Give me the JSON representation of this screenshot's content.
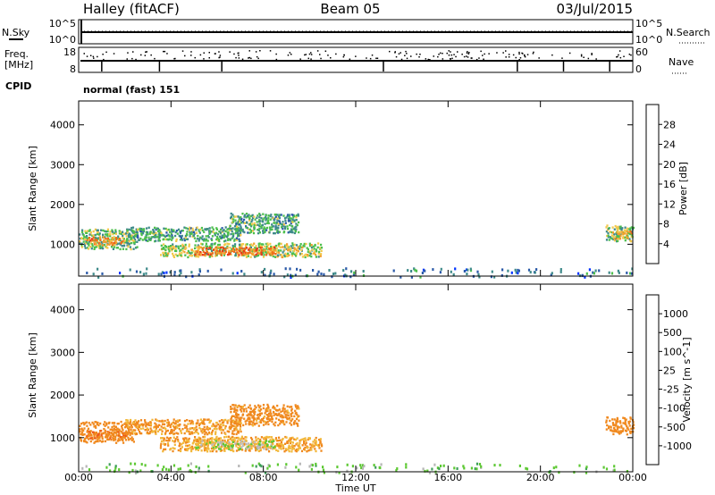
{
  "header": {
    "station": "Halley (fitACF)",
    "beam": "Beam 05",
    "date": "03/Jul/2015"
  },
  "noise_panel": {
    "left_label": "N.Sky",
    "left_ticks": [
      "10^5",
      "10^0"
    ],
    "right_label": "N.Search",
    "right_ticks": [
      "10^5",
      "10^0"
    ]
  },
  "freq_panel": {
    "left_label_line1": "Freq.",
    "left_label_line2": "[MHz]",
    "left_ticks": [
      "18",
      "8"
    ],
    "right_label": "Nave",
    "right_ticks": [
      "60",
      "0"
    ]
  },
  "cpid": {
    "label": "CPID",
    "value": "normal (fast) 151"
  },
  "x_axis": {
    "label": "Time UT",
    "ticks": [
      "00:00",
      "04:00",
      "08:00",
      "12:00",
      "16:00",
      "20:00",
      "00:00"
    ],
    "hours": [
      0,
      4,
      8,
      12,
      16,
      20,
      24
    ]
  },
  "colors": {
    "power_scale": [
      "#0033ff",
      "#2b5aa8",
      "#3f8a8a",
      "#4cbf4c",
      "#f2c94c",
      "#f29f2e",
      "#ef6a1a",
      "#e83a1a",
      "#d41212"
    ],
    "velocity_scale": [
      "#e81c1c",
      "#ee5a1a",
      "#f0891e",
      "#f2b83a",
      "#bdbdbd",
      "#b6b6b6",
      "#5cc832",
      "#3f9f5a",
      "#2a6ab0",
      "#1a3fd6"
    ]
  },
  "chart_data": [
    {
      "type": "heatmap",
      "panel": "power",
      "xlabel": "Time UT",
      "ylabel": "Slant Range [km]",
      "x_unit": "hours UT",
      "xlim": [
        0,
        24
      ],
      "ylim": [
        200,
        4600
      ],
      "yticks": [
        1000,
        2000,
        3000,
        4000
      ],
      "colorbar": {
        "label": "Power [dB]",
        "range": [
          0,
          32
        ],
        "ticks": [
          "4",
          "8",
          "12",
          "16",
          "20",
          "24",
          "28"
        ]
      },
      "regions": [
        {
          "t0": 0.0,
          "t1": 2.5,
          "r0": 900,
          "r1": 1400,
          "val": 14
        },
        {
          "t0": 0.3,
          "t1": 2.0,
          "r0": 1000,
          "r1": 1200,
          "val": 24
        },
        {
          "t0": 2.0,
          "t1": 7.0,
          "r0": 1100,
          "r1": 1450,
          "val": 12
        },
        {
          "t0": 3.5,
          "t1": 10.5,
          "r0": 700,
          "r1": 1050,
          "val": 16
        },
        {
          "t0": 5.0,
          "t1": 8.5,
          "r0": 750,
          "r1": 950,
          "val": 26
        },
        {
          "t0": 6.5,
          "t1": 9.5,
          "r0": 1300,
          "r1": 1800,
          "val": 12
        },
        {
          "t0": 22.8,
          "t1": 24.0,
          "r0": 1100,
          "r1": 1500,
          "val": 14
        },
        {
          "t0": 23.1,
          "t1": 24.0,
          "r0": 1150,
          "r1": 1350,
          "val": 20
        },
        {
          "t0": 0.0,
          "t1": 24.0,
          "r0": 200,
          "r1": 420,
          "val": 8
        }
      ]
    },
    {
      "type": "heatmap",
      "panel": "velocity",
      "xlabel": "Time UT",
      "ylabel": "Slant Range [km]",
      "x_unit": "hours UT",
      "xlim": [
        0,
        24
      ],
      "ylim": [
        200,
        4600
      ],
      "yticks": [
        1000,
        2000,
        3000,
        4000
      ],
      "colorbar": {
        "label": "Velocity [m s^-1]",
        "ticks": [
          "1000",
          "500",
          "100",
          "25",
          "-25",
          "-100",
          "-500",
          "-1000"
        ]
      },
      "regions": [
        {
          "t0": 0.0,
          "t1": 2.5,
          "r0": 900,
          "r1": 1400,
          "val": -180
        },
        {
          "t0": 0.3,
          "t1": 2.0,
          "r0": 1000,
          "r1": 1200,
          "val": -500
        },
        {
          "t0": 2.0,
          "t1": 7.0,
          "r0": 1100,
          "r1": 1450,
          "val": -120
        },
        {
          "t0": 3.5,
          "t1": 10.5,
          "r0": 700,
          "r1": 1050,
          "val": -90
        },
        {
          "t0": 5.0,
          "t1": 8.5,
          "r0": 750,
          "r1": 950,
          "val": 0
        },
        {
          "t0": 6.5,
          "t1": 9.5,
          "r0": 1300,
          "r1": 1800,
          "val": -150
        },
        {
          "t0": 22.8,
          "t1": 24.0,
          "r0": 1100,
          "r1": 1500,
          "val": -300
        },
        {
          "t0": 0.0,
          "t1": 24.0,
          "r0": 200,
          "r1": 420,
          "val": 60
        }
      ]
    }
  ]
}
